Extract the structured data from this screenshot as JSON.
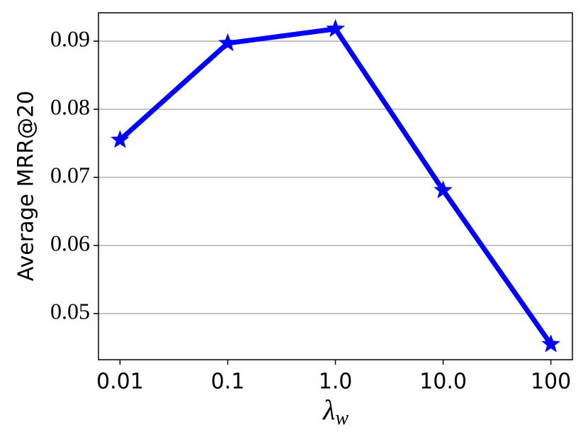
{
  "chart_data": {
    "type": "line",
    "categories": [
      "0.01",
      "0.1",
      "1.0",
      "10.0",
      "100"
    ],
    "series": [
      {
        "name": "Average MRR@20",
        "color": "#0000ff",
        "values": [
          0.0755,
          0.0897,
          0.0918,
          0.0681,
          0.0455
        ]
      }
    ],
    "ylabel": "Average MRR@20",
    "xlabel": "λw",
    "ylim": [
      0.04323,
      0.09417
    ],
    "yticks": [
      0.05,
      0.06,
      0.07,
      0.08,
      0.09
    ],
    "grid": true
  }
}
